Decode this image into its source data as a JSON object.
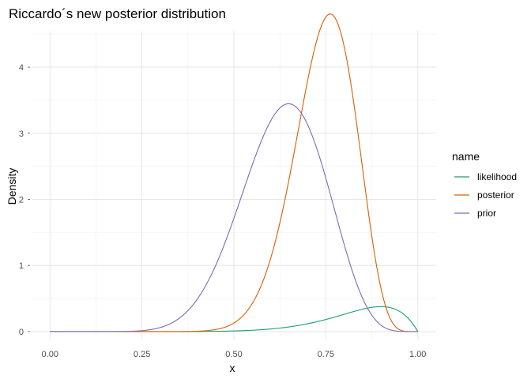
{
  "chart_data": {
    "type": "line",
    "title": "Riccardo´s new posterior distribution",
    "xlabel": "x",
    "ylabel": "Density",
    "xlim": [
      -0.05,
      1.05
    ],
    "ylim": [
      -0.12,
      4.55
    ],
    "x_ticks": [
      0,
      0.25,
      0.5,
      0.75,
      1
    ],
    "x_tick_labels": [
      "0.00",
      "0.25",
      "0.50",
      "0.75",
      "1.00"
    ],
    "y_ticks": [
      0,
      1,
      2,
      3,
      4
    ],
    "y_tick_labels": [
      "0",
      "1",
      "2",
      "3",
      "4"
    ],
    "grid": true,
    "legend": {
      "title": "name",
      "position": "right"
    },
    "series": [
      {
        "name": "likelihood",
        "color": "#1b9e77",
        "dist": "beta",
        "a": 10,
        "b": 2,
        "scale": 0.0887
      },
      {
        "name": "posterior",
        "color": "#d95f02",
        "dist": "beta",
        "a": 20.1,
        "b": 6.97,
        "scale": 1
      },
      {
        "name": "prior",
        "color": "#7570b3",
        "dist": "beta",
        "a": 11.1,
        "b": 6.47,
        "scale": 1
      }
    ]
  }
}
